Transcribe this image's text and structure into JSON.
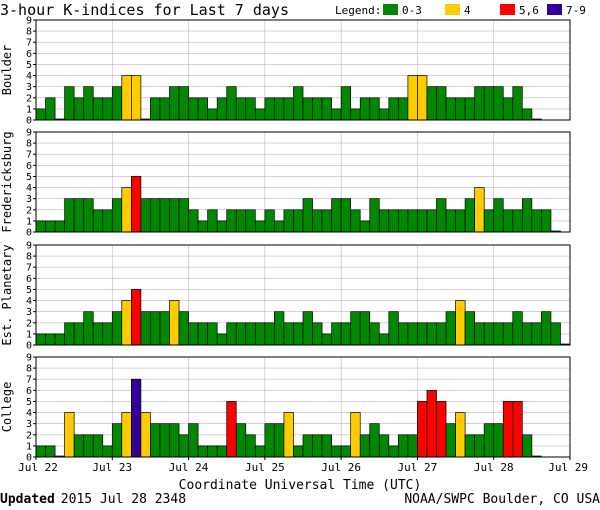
{
  "chart_data": {
    "type": "bar",
    "title": "3-hour K-indices for Last 7 days",
    "legend": {
      "label": "Legend:",
      "placement": "top-right",
      "items": [
        {
          "label": "0-3",
          "color": "#008800"
        },
        {
          "label": "4",
          "color": "#ffcc00"
        },
        {
          "label": "5,6",
          "color": "#ff0000"
        },
        {
          "label": "7-9",
          "color": "#330099"
        }
      ]
    },
    "xlabel": "Coordinate Universal Time (UTC)",
    "x_tick_labels": [
      "Jul 22",
      "Jul 23",
      "Jul 24",
      "Jul 25",
      "Jul 26",
      "Jul 27",
      "Jul 28",
      "Jul 29"
    ],
    "ylim": [
      0,
      9
    ],
    "y_ticks": [
      0,
      1,
      2,
      3,
      4,
      5,
      6,
      7,
      8,
      9
    ],
    "grid": true,
    "bars_per_day": 8,
    "series": [
      {
        "name": "Boulder",
        "values": [
          1,
          2,
          0,
          3,
          2,
          3,
          2,
          2,
          3,
          4,
          4,
          0,
          2,
          2,
          3,
          3,
          2,
          2,
          1,
          2,
          3,
          2,
          2,
          1,
          2,
          2,
          2,
          3,
          2,
          2,
          2,
          1,
          3,
          1,
          2,
          2,
          1,
          2,
          2,
          4,
          4,
          3,
          3,
          2,
          2,
          2,
          3,
          3,
          3,
          2,
          3,
          1,
          0
        ]
      },
      {
        "name": "Fredericksburg",
        "values": [
          1,
          1,
          1,
          3,
          3,
          3,
          2,
          2,
          3,
          4,
          5,
          3,
          3,
          3,
          3,
          3,
          2,
          1,
          2,
          1,
          2,
          2,
          2,
          1,
          2,
          1,
          2,
          2,
          3,
          2,
          2,
          3,
          3,
          2,
          1,
          3,
          2,
          2,
          2,
          2,
          2,
          2,
          3,
          2,
          2,
          3,
          4,
          2,
          3,
          2,
          2,
          3,
          2,
          2,
          0
        ]
      },
      {
        "name": "Est. Planetary",
        "values": [
          1,
          1,
          1,
          2,
          2,
          3,
          2,
          2,
          3,
          4,
          5,
          3,
          3,
          3,
          4,
          3,
          2,
          2,
          2,
          1,
          2,
          2,
          2,
          2,
          2,
          3,
          2,
          2,
          3,
          2,
          1,
          2,
          2,
          3,
          3,
          2,
          1,
          3,
          2,
          2,
          2,
          2,
          2,
          3,
          4,
          3,
          2,
          2,
          2,
          2,
          3,
          2,
          2,
          3,
          2,
          0
        ]
      },
      {
        "name": "College",
        "values": [
          1,
          1,
          0,
          4,
          2,
          2,
          2,
          1,
          3,
          4,
          7,
          4,
          3,
          3,
          3,
          2,
          3,
          1,
          1,
          1,
          5,
          3,
          2,
          1,
          3,
          3,
          4,
          1,
          2,
          2,
          2,
          1,
          1,
          4,
          2,
          3,
          2,
          1,
          2,
          2,
          5,
          6,
          5,
          3,
          4,
          2,
          2,
          3,
          3,
          5,
          5,
          2,
          0
        ]
      }
    ]
  },
  "footer": {
    "updated_label": "Updated",
    "updated_value": "2015 Jul 28 2348",
    "credit": "NOAA/SWPC Boulder, CO USA"
  }
}
